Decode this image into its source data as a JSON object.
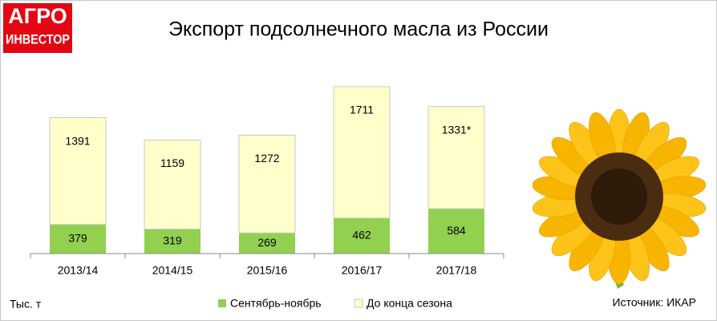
{
  "logo": {
    "line1": "АГРО",
    "line2": "ИНВЕСТОР"
  },
  "chart_data": {
    "type": "stacked_bar",
    "title": "Экспорт подсолнечного масла из России",
    "unit_label": "Тыс. т",
    "source": "Источник: ИКАР",
    "categories": [
      "2013/14",
      "2014/15",
      "2015/16",
      "2016/17",
      "2017/18"
    ],
    "series": [
      {
        "name": "Сентябрь-ноябрь",
        "color": "#92d050",
        "values": [
          379,
          319,
          269,
          462,
          584
        ]
      },
      {
        "name": "До конца сезона",
        "color": "#ffffcc",
        "values": [
          1391,
          1159,
          1272,
          1711,
          1331
        ],
        "value_labels": [
          "1391",
          "1159",
          "1272",
          "1711",
          "1331*"
        ]
      }
    ]
  }
}
